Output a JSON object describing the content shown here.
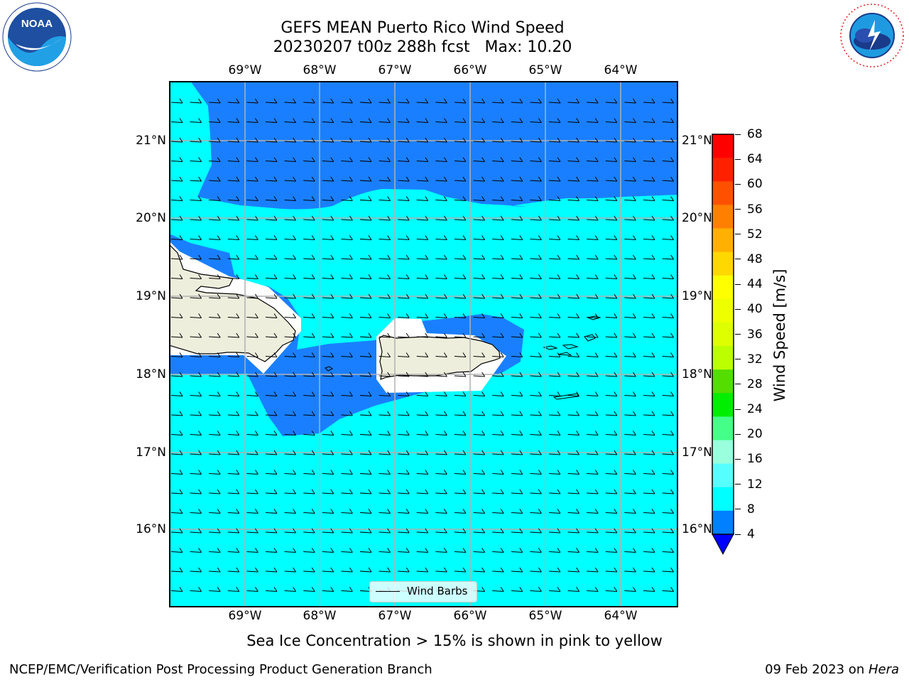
{
  "title_line1": "GEFS MEAN Puerto Rico Wind Speed",
  "title_line2": "20230207 t00z 288h fcst   Max: 10.20",
  "map": {
    "lon_labels": [
      "69°W",
      "68°W",
      "67°W",
      "66°W",
      "65°W",
      "64°W"
    ],
    "lat_labels": [
      "21°N",
      "20°N",
      "19°N",
      "18°N",
      "17°N",
      "16°N"
    ],
    "extent": {
      "lon_min": -70.0,
      "lon_max": -63.25,
      "lat_min": 15.0,
      "lat_max": 21.75
    },
    "legend_label": "Wind Barbs",
    "land_color": "#eeeedd",
    "sea_fill_colors": [
      "#0000ff",
      "#0080ff",
      "#00ffff",
      "#40ffff"
    ]
  },
  "colorbar": {
    "label": "Wind Speed [m/s]",
    "ticks": [
      "68",
      "64",
      "60",
      "56",
      "52",
      "48",
      "44",
      "40",
      "36",
      "32",
      "28",
      "24",
      "20",
      "16",
      "12",
      "8",
      "4"
    ],
    "colors_top_to_bottom": [
      "#ff0000",
      "#ff2000",
      "#ff5000",
      "#ff8000",
      "#ffb000",
      "#ffd800",
      "#ffff00",
      "#eeff00",
      "#ddff00",
      "#bbff00",
      "#55dd00",
      "#00ee00",
      "#44ff88",
      "#99ffdd",
      "#55ffff",
      "#00ffff",
      "#0080ff"
    ],
    "extend_color": "#0000ff"
  },
  "logos": {
    "left_text": "NOAA",
    "right_text": "NATIONAL WEATHER SERVICE"
  },
  "caption": "Sea Ice Concentration > 15% is shown in pink to yellow",
  "footer": {
    "left": "NCEP/EMC/Verification Post Processing Product Generation Branch",
    "right_prefix": "09 Feb 2023 on ",
    "right_host": "Hera"
  }
}
